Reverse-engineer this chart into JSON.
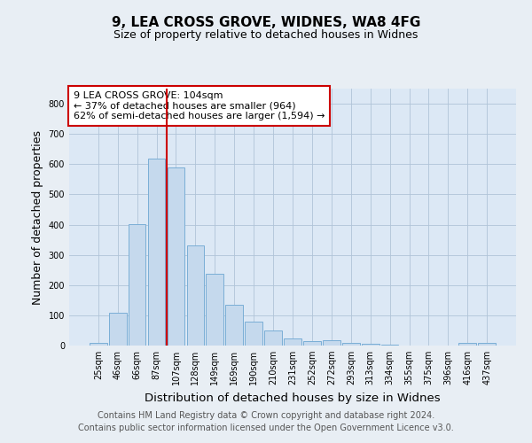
{
  "title": "9, LEA CROSS GROVE, WIDNES, WA8 4FG",
  "subtitle": "Size of property relative to detached houses in Widnes",
  "xlabel": "Distribution of detached houses by size in Widnes",
  "ylabel": "Number of detached properties",
  "categories": [
    "25sqm",
    "46sqm",
    "66sqm",
    "87sqm",
    "107sqm",
    "128sqm",
    "149sqm",
    "169sqm",
    "190sqm",
    "210sqm",
    "231sqm",
    "252sqm",
    "272sqm",
    "293sqm",
    "313sqm",
    "334sqm",
    "355sqm",
    "375sqm",
    "396sqm",
    "416sqm",
    "437sqm"
  ],
  "values": [
    8,
    107,
    403,
    617,
    590,
    330,
    237,
    135,
    79,
    51,
    23,
    15,
    18,
    8,
    5,
    2,
    0,
    0,
    0,
    8,
    10
  ],
  "bar_color": "#c5d9ed",
  "bar_edge_color": "#7aaed6",
  "vline_color": "#cc0000",
  "vline_pos": 3.5,
  "annotation_text": "9 LEA CROSS GROVE: 104sqm\n← 37% of detached houses are smaller (964)\n62% of semi-detached houses are larger (1,594) →",
  "annotation_box_color": "#ffffff",
  "annotation_box_edge": "#cc0000",
  "footer_text": "Contains HM Land Registry data © Crown copyright and database right 2024.\nContains public sector information licensed under the Open Government Licence v3.0.",
  "ylim": [
    0,
    850
  ],
  "yticks": [
    0,
    100,
    200,
    300,
    400,
    500,
    600,
    700,
    800
  ],
  "title_fontsize": 11,
  "subtitle_fontsize": 9,
  "xlabel_fontsize": 9.5,
  "ylabel_fontsize": 9,
  "tick_fontsize": 7,
  "footer_fontsize": 7,
  "annotation_fontsize": 8,
  "background_color": "#e8eef4",
  "plot_bg_color": "#dce8f5"
}
